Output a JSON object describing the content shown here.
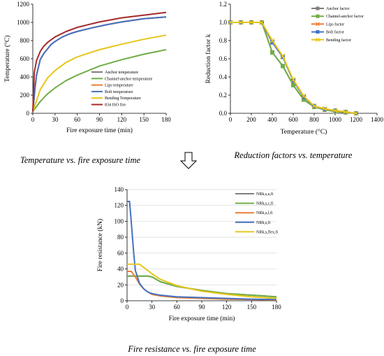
{
  "chart_data": [
    {
      "id": "temperature",
      "type": "line",
      "ylabel": "Temperature (°C)",
      "xlabel": "Fire exposure time (min)",
      "caption": "Temperature vs. fire exposure time",
      "xlim": [
        0,
        180
      ],
      "ylim": [
        0,
        1200
      ],
      "xticks": [
        0,
        30,
        60,
        90,
        120,
        150,
        180
      ],
      "yticks": [
        0,
        200,
        400,
        600,
        800,
        1000,
        1200
      ],
      "grid": false,
      "legend_position": "lower-right",
      "series": [
        {
          "name": "Anchor temperature",
          "color": "#7f7f7f",
          "x": [
            0,
            3,
            5,
            10,
            15,
            20,
            25,
            30,
            40,
            50,
            60,
            80,
            100,
            120,
            150,
            180
          ],
          "y": [
            20,
            280,
            420,
            590,
            660,
            710,
            760,
            790,
            840,
            875,
            900,
            940,
            975,
            1005,
            1040,
            1060
          ]
        },
        {
          "name": "Channel-anchor temperature",
          "color": "#70ad47",
          "x": [
            0,
            10,
            20,
            30,
            45,
            60,
            90,
            120,
            150,
            180
          ],
          "y": [
            20,
            130,
            215,
            280,
            360,
            420,
            520,
            590,
            650,
            700
          ]
        },
        {
          "name": "Lips temperature",
          "color": "#ed7d31",
          "x": [
            0,
            3,
            5,
            10,
            15,
            20,
            25,
            30,
            40,
            50,
            60,
            80,
            100,
            120,
            150,
            180
          ],
          "y": [
            20,
            280,
            420,
            590,
            660,
            710,
            760,
            790,
            840,
            875,
            900,
            940,
            975,
            1005,
            1040,
            1060
          ]
        },
        {
          "name": "Bolt temperature",
          "color": "#4472c4",
          "x": [
            0,
            3,
            5,
            10,
            15,
            20,
            25,
            30,
            40,
            50,
            60,
            80,
            100,
            120,
            150,
            180
          ],
          "y": [
            20,
            280,
            420,
            590,
            660,
            710,
            760,
            790,
            840,
            875,
            900,
            940,
            975,
            1005,
            1040,
            1060
          ]
        },
        {
          "name": "Bending Temperature",
          "color": "#e6c619",
          "x": [
            0,
            10,
            20,
            30,
            45,
            60,
            90,
            120,
            150,
            180
          ],
          "y": [
            20,
            260,
            390,
            470,
            560,
            620,
            700,
            760,
            815,
            860
          ]
        },
        {
          "name": "834 ISO fire",
          "color": "#a52a2a",
          "x": [
            0,
            2,
            5,
            10,
            15,
            20,
            30,
            45,
            60,
            90,
            120,
            150,
            180
          ],
          "y": [
            20,
            450,
            580,
            680,
            740,
            780,
            840,
            900,
            945,
            1005,
            1050,
            1080,
            1110
          ]
        }
      ]
    },
    {
      "id": "reduction",
      "type": "line",
      "ylabel": "Reduction factor k",
      "xlabel": "Temperature (°C)",
      "caption": "Reduction factors vs. temperature",
      "xlim": [
        0,
        1400
      ],
      "ylim": [
        0,
        1.2
      ],
      "xticks": [
        0,
        200,
        400,
        600,
        800,
        1000,
        1200,
        1400
      ],
      "yticks": [
        0,
        0.2,
        0.4,
        0.6,
        0.8,
        1,
        1.2
      ],
      "ytick_labels": [
        "0.0",
        "0.2",
        "0.4",
        "0.6",
        "0.8",
        "1.0",
        "1.2"
      ],
      "grid": false,
      "legend_position": "top-right",
      "series": [
        {
          "name": "Anchor factor",
          "color": "#7f7f7f",
          "marker": "square",
          "x": [
            0,
            100,
            200,
            300,
            400,
            500,
            600,
            700,
            800,
            900,
            1000,
            1100,
            1200
          ],
          "y": [
            1.0,
            1.0,
            1.0,
            1.0,
            0.67,
            0.52,
            0.31,
            0.15,
            0.07,
            0.04,
            0.02,
            0.01,
            0.0
          ]
        },
        {
          "name": "Channel-anchor factor",
          "color": "#70ad47",
          "marker": "square",
          "x": [
            0,
            100,
            200,
            300,
            400,
            500,
            600,
            700,
            800,
            900,
            1000,
            1100,
            1200
          ],
          "y": [
            1.0,
            1.0,
            1.0,
            1.0,
            0.67,
            0.52,
            0.31,
            0.15,
            0.07,
            0.04,
            0.02,
            0.01,
            0.0
          ]
        },
        {
          "name": "Lips factor",
          "color": "#ed7d31",
          "marker": "x",
          "x": [
            0,
            100,
            200,
            300,
            400,
            500,
            600,
            700,
            800,
            900,
            1000,
            1100,
            1200
          ],
          "y": [
            1.0,
            1.0,
            1.0,
            1.0,
            0.78,
            0.62,
            0.36,
            0.18,
            0.08,
            0.045,
            0.03,
            0.015,
            0.0
          ]
        },
        {
          "name": "Bolt factor",
          "color": "#4472c4",
          "marker": "square",
          "x": [
            0,
            100,
            200,
            300,
            400,
            500,
            600,
            700,
            800,
            900,
            1000,
            1100,
            1200
          ],
          "y": [
            1.0,
            1.0,
            1.0,
            1.0,
            0.78,
            0.62,
            0.36,
            0.18,
            0.08,
            0.045,
            0.03,
            0.015,
            0.0
          ]
        },
        {
          "name": "Bending factor",
          "color": "#e6c619",
          "marker": "x",
          "x": [
            0,
            100,
            200,
            300,
            400,
            500,
            600,
            700,
            800,
            900,
            1000,
            1100,
            1200
          ],
          "y": [
            1.0,
            1.0,
            1.0,
            1.0,
            0.8,
            0.63,
            0.37,
            0.19,
            0.08,
            0.05,
            0.03,
            0.015,
            0.0
          ]
        }
      ]
    },
    {
      "id": "resistance",
      "type": "line",
      "ylabel": "Fire resistance (kN)",
      "xlabel": "Fire exposure time (min)",
      "caption": "Fire resistance vs. fire exposure time",
      "xlim": [
        0,
        180
      ],
      "ylim": [
        0,
        140
      ],
      "xticks": [
        0,
        30,
        60,
        90,
        120,
        150,
        180
      ],
      "yticks": [
        0,
        20,
        40,
        60,
        80,
        100,
        120,
        140
      ],
      "grid": true,
      "legend_position": "top-right",
      "series": [
        {
          "name": "NRk,s,a,fi",
          "color": "#7f7f7f",
          "x": [
            0,
            5,
            10,
            15,
            20,
            25,
            30,
            40,
            60,
            90,
            120,
            150,
            180
          ],
          "y": [
            31,
            31,
            31,
            31,
            31,
            31,
            30,
            24,
            18,
            13,
            9,
            7,
            5
          ]
        },
        {
          "name": "NRk,s,c,fi",
          "color": "#70ad47",
          "x": [
            0,
            5,
            10,
            15,
            20,
            25,
            30,
            40,
            60,
            90,
            120,
            150,
            180
          ],
          "y": [
            31,
            31,
            31,
            31,
            31,
            31,
            30,
            24,
            18,
            13,
            9,
            7,
            5
          ]
        },
        {
          "name": "NRk,s,l,fi",
          "color": "#ed7d31",
          "x": [
            0,
            5,
            10,
            15,
            20,
            25,
            30,
            40,
            60,
            90,
            120,
            150,
            180
          ],
          "y": [
            37,
            37,
            30,
            21,
            15,
            11,
            8,
            6,
            4,
            3,
            2,
            1.5,
            1
          ]
        },
        {
          "name": "NRk,s,fi",
          "color": "#4472c4",
          "x": [
            0,
            3,
            5,
            8,
            10,
            15,
            20,
            25,
            30,
            40,
            60,
            90,
            120,
            150,
            180
          ],
          "y": [
            125,
            125,
            100,
            60,
            38,
            22,
            15,
            11,
            9,
            7,
            5,
            4,
            3,
            2,
            1.5
          ]
        },
        {
          "name": "NRk,s,flex,fi",
          "color": "#e6c619",
          "x": [
            0,
            5,
            10,
            15,
            20,
            25,
            30,
            40,
            60,
            90,
            120,
            150,
            180
          ],
          "y": [
            46,
            46,
            46,
            46,
            42,
            38,
            34,
            27,
            19,
            12,
            8,
            5,
            3
          ]
        }
      ]
    }
  ]
}
